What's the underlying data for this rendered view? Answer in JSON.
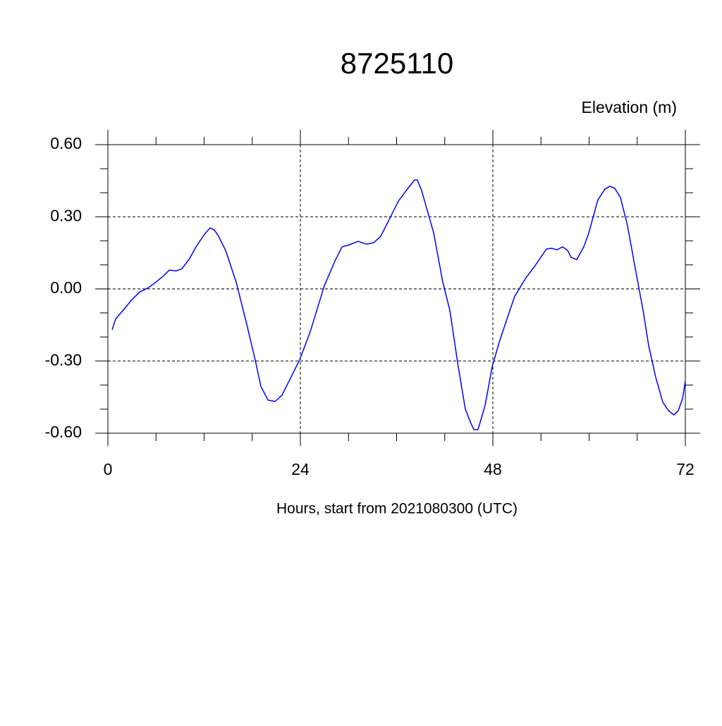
{
  "chart_data": {
    "type": "line",
    "title": "8725110",
    "y_label": "Elevation (m)",
    "x_label": "Hours, start from 2021080300 (UTC)",
    "xlim": [
      0,
      72
    ],
    "ylim": [
      -0.6,
      0.6
    ],
    "xticks": [
      0,
      24,
      48,
      72
    ],
    "yticks": [
      {
        "value": -0.6,
        "label": "-0.60"
      },
      {
        "value": -0.3,
        "label": "-0.30"
      },
      {
        "value": 0,
        "label": "0.00"
      },
      {
        "value": 0.3,
        "label": "0.30"
      },
      {
        "value": 0.6,
        "label": "0.60"
      }
    ],
    "xminorticks": [
      6,
      12,
      18,
      30,
      36,
      42,
      54,
      60,
      66
    ],
    "yminorticks": [
      -0.5,
      -0.4,
      -0.2,
      -0.1,
      0.1,
      0.2,
      0.4,
      0.5
    ],
    "grid": true,
    "series": [
      {
        "name": "8725110",
        "color": "#0000ff",
        "x": [
          0.53,
          0.97,
          2.02,
          2.99,
          3.96,
          5.01,
          5.98,
          7.03,
          7.65,
          8.53,
          9.23,
          10.11,
          10.99,
          12.04,
          12.75,
          13.27,
          13.8,
          14.68,
          16.0,
          17.32,
          18.37,
          19.08,
          19.96,
          20.84,
          21.71,
          22.59,
          23.91,
          25.23,
          26.99,
          28.31,
          29.19,
          30.07,
          31.21,
          32.26,
          33.14,
          34.02,
          34.9,
          36.22,
          37.54,
          38.24,
          38.59,
          39.12,
          40.62,
          41.76,
          42.64,
          43.69,
          44.57,
          45.27,
          45.63,
          46.15,
          47.03,
          47.91,
          48.79,
          49.67,
          50.72,
          52.04,
          53.36,
          54.68,
          55.3,
          56.0,
          56.7,
          57.32,
          57.76,
          58.46,
          59.34,
          59.96,
          61.1,
          61.98,
          62.59,
          63.21,
          63.91,
          64.79,
          65.67,
          66.73,
          67.43,
          68.31,
          69.19,
          69.89,
          70.59,
          71.12,
          71.65,
          72.0
        ],
        "values": [
          -0.17,
          -0.125,
          -0.084,
          -0.045,
          -0.013,
          0.004,
          0.028,
          0.057,
          0.078,
          0.075,
          0.084,
          0.122,
          0.175,
          0.227,
          0.254,
          0.245,
          0.219,
          0.16,
          0.028,
          -0.148,
          -0.295,
          -0.406,
          -0.462,
          -0.468,
          -0.442,
          -0.383,
          -0.295,
          -0.178,
          0.013,
          0.116,
          0.175,
          0.183,
          0.198,
          0.186,
          0.192,
          0.219,
          0.277,
          0.365,
          0.424,
          0.453,
          0.453,
          0.409,
          0.233,
          0.028,
          -0.089,
          -0.324,
          -0.5,
          -0.559,
          -0.585,
          -0.585,
          -0.485,
          -0.324,
          -0.222,
          -0.134,
          -0.031,
          0.042,
          0.101,
          0.166,
          0.169,
          0.163,
          0.175,
          0.16,
          0.131,
          0.122,
          0.175,
          0.233,
          0.371,
          0.415,
          0.427,
          0.418,
          0.38,
          0.263,
          0.101,
          -0.089,
          -0.236,
          -0.368,
          -0.471,
          -0.506,
          -0.524,
          -0.506,
          -0.456,
          -0.383
        ]
      }
    ]
  }
}
